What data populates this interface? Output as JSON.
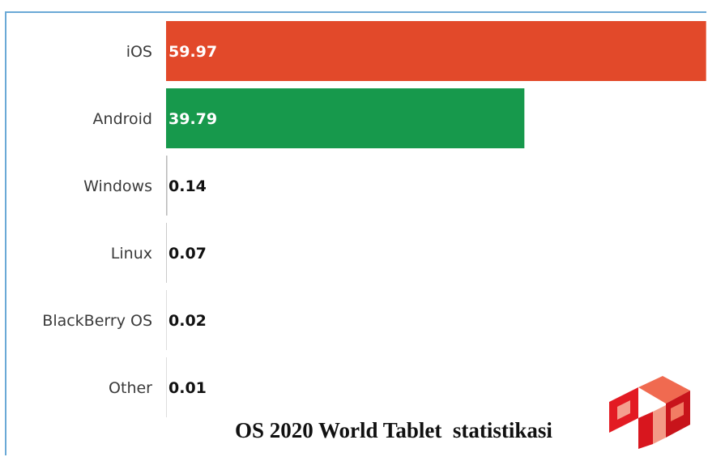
{
  "chart_data": {
    "type": "bar",
    "orientation": "horizontal",
    "categories": [
      "iOS",
      "Android",
      "Windows",
      "Linux",
      "BlackBerry OS",
      "Other"
    ],
    "values": [
      59.97,
      39.79,
      0.14,
      0.07,
      0.02,
      0.01
    ],
    "value_labels": [
      "59.97",
      "39.79",
      "0.14",
      "0.07",
      "0.02",
      "0.01"
    ],
    "bar_colors": [
      "#e2492a",
      "#17994c",
      "#bbbbbb",
      "#bbbbbb",
      "#bbbbbb",
      "#bbbbbb"
    ],
    "xlim": [
      0,
      60
    ],
    "grid": false,
    "legend": "none"
  },
  "caption": "OS 2020 World Tablet  statistikasi",
  "logo": {
    "icon": "red-cube-logo-icon"
  },
  "colors": {
    "frame": "#6aa9d6",
    "label_text": "#3a3a3a",
    "value_text_inside": "#ffffff",
    "value_text_outside": "#111111"
  }
}
